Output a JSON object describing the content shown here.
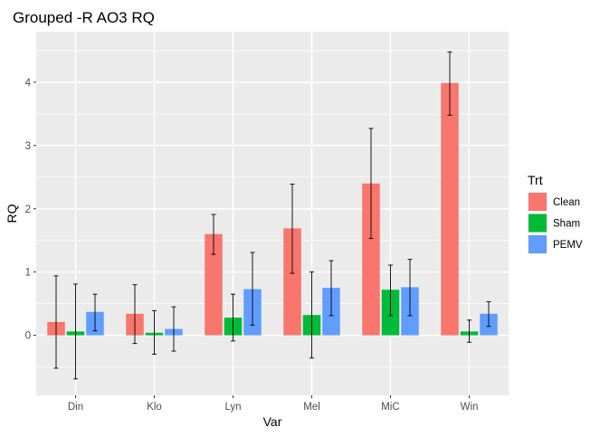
{
  "chart_data": {
    "type": "bar",
    "title": "Grouped -R AO3 RQ",
    "xlabel": "Var",
    "ylabel": "RQ",
    "categories": [
      "Din",
      "Klo",
      "Lyn",
      "Mel",
      "MiC",
      "Win"
    ],
    "ylim": [
      -0.95,
      4.8
    ],
    "yticks": [
      0,
      1,
      2,
      3,
      4
    ],
    "grid": true,
    "legend": {
      "title": "Trt",
      "position": "right"
    },
    "series": [
      {
        "name": "Clean",
        "color": "#f8766d",
        "values": [
          0.21,
          0.34,
          1.6,
          1.69,
          2.4,
          3.99
        ],
        "error_low": [
          -0.52,
          -0.13,
          1.28,
          0.98,
          1.53,
          3.48
        ],
        "error_high": [
          0.94,
          0.8,
          1.91,
          2.39,
          3.27,
          4.48
        ]
      },
      {
        "name": "Sham",
        "color": "#00ba38",
        "values": [
          0.06,
          0.04,
          0.28,
          0.32,
          0.72,
          0.06
        ],
        "error_low": [
          -0.69,
          -0.3,
          -0.09,
          -0.36,
          0.31,
          -0.11
        ],
        "error_high": [
          0.81,
          0.39,
          0.65,
          1.0,
          1.11,
          0.24
        ]
      },
      {
        "name": "PEMV",
        "color": "#619cff",
        "values": [
          0.37,
          0.1,
          0.73,
          0.75,
          0.76,
          0.34
        ],
        "error_low": [
          0.07,
          -0.25,
          0.16,
          0.31,
          0.31,
          0.14
        ],
        "error_high": [
          0.65,
          0.45,
          1.31,
          1.18,
          1.2,
          0.53
        ]
      }
    ]
  }
}
